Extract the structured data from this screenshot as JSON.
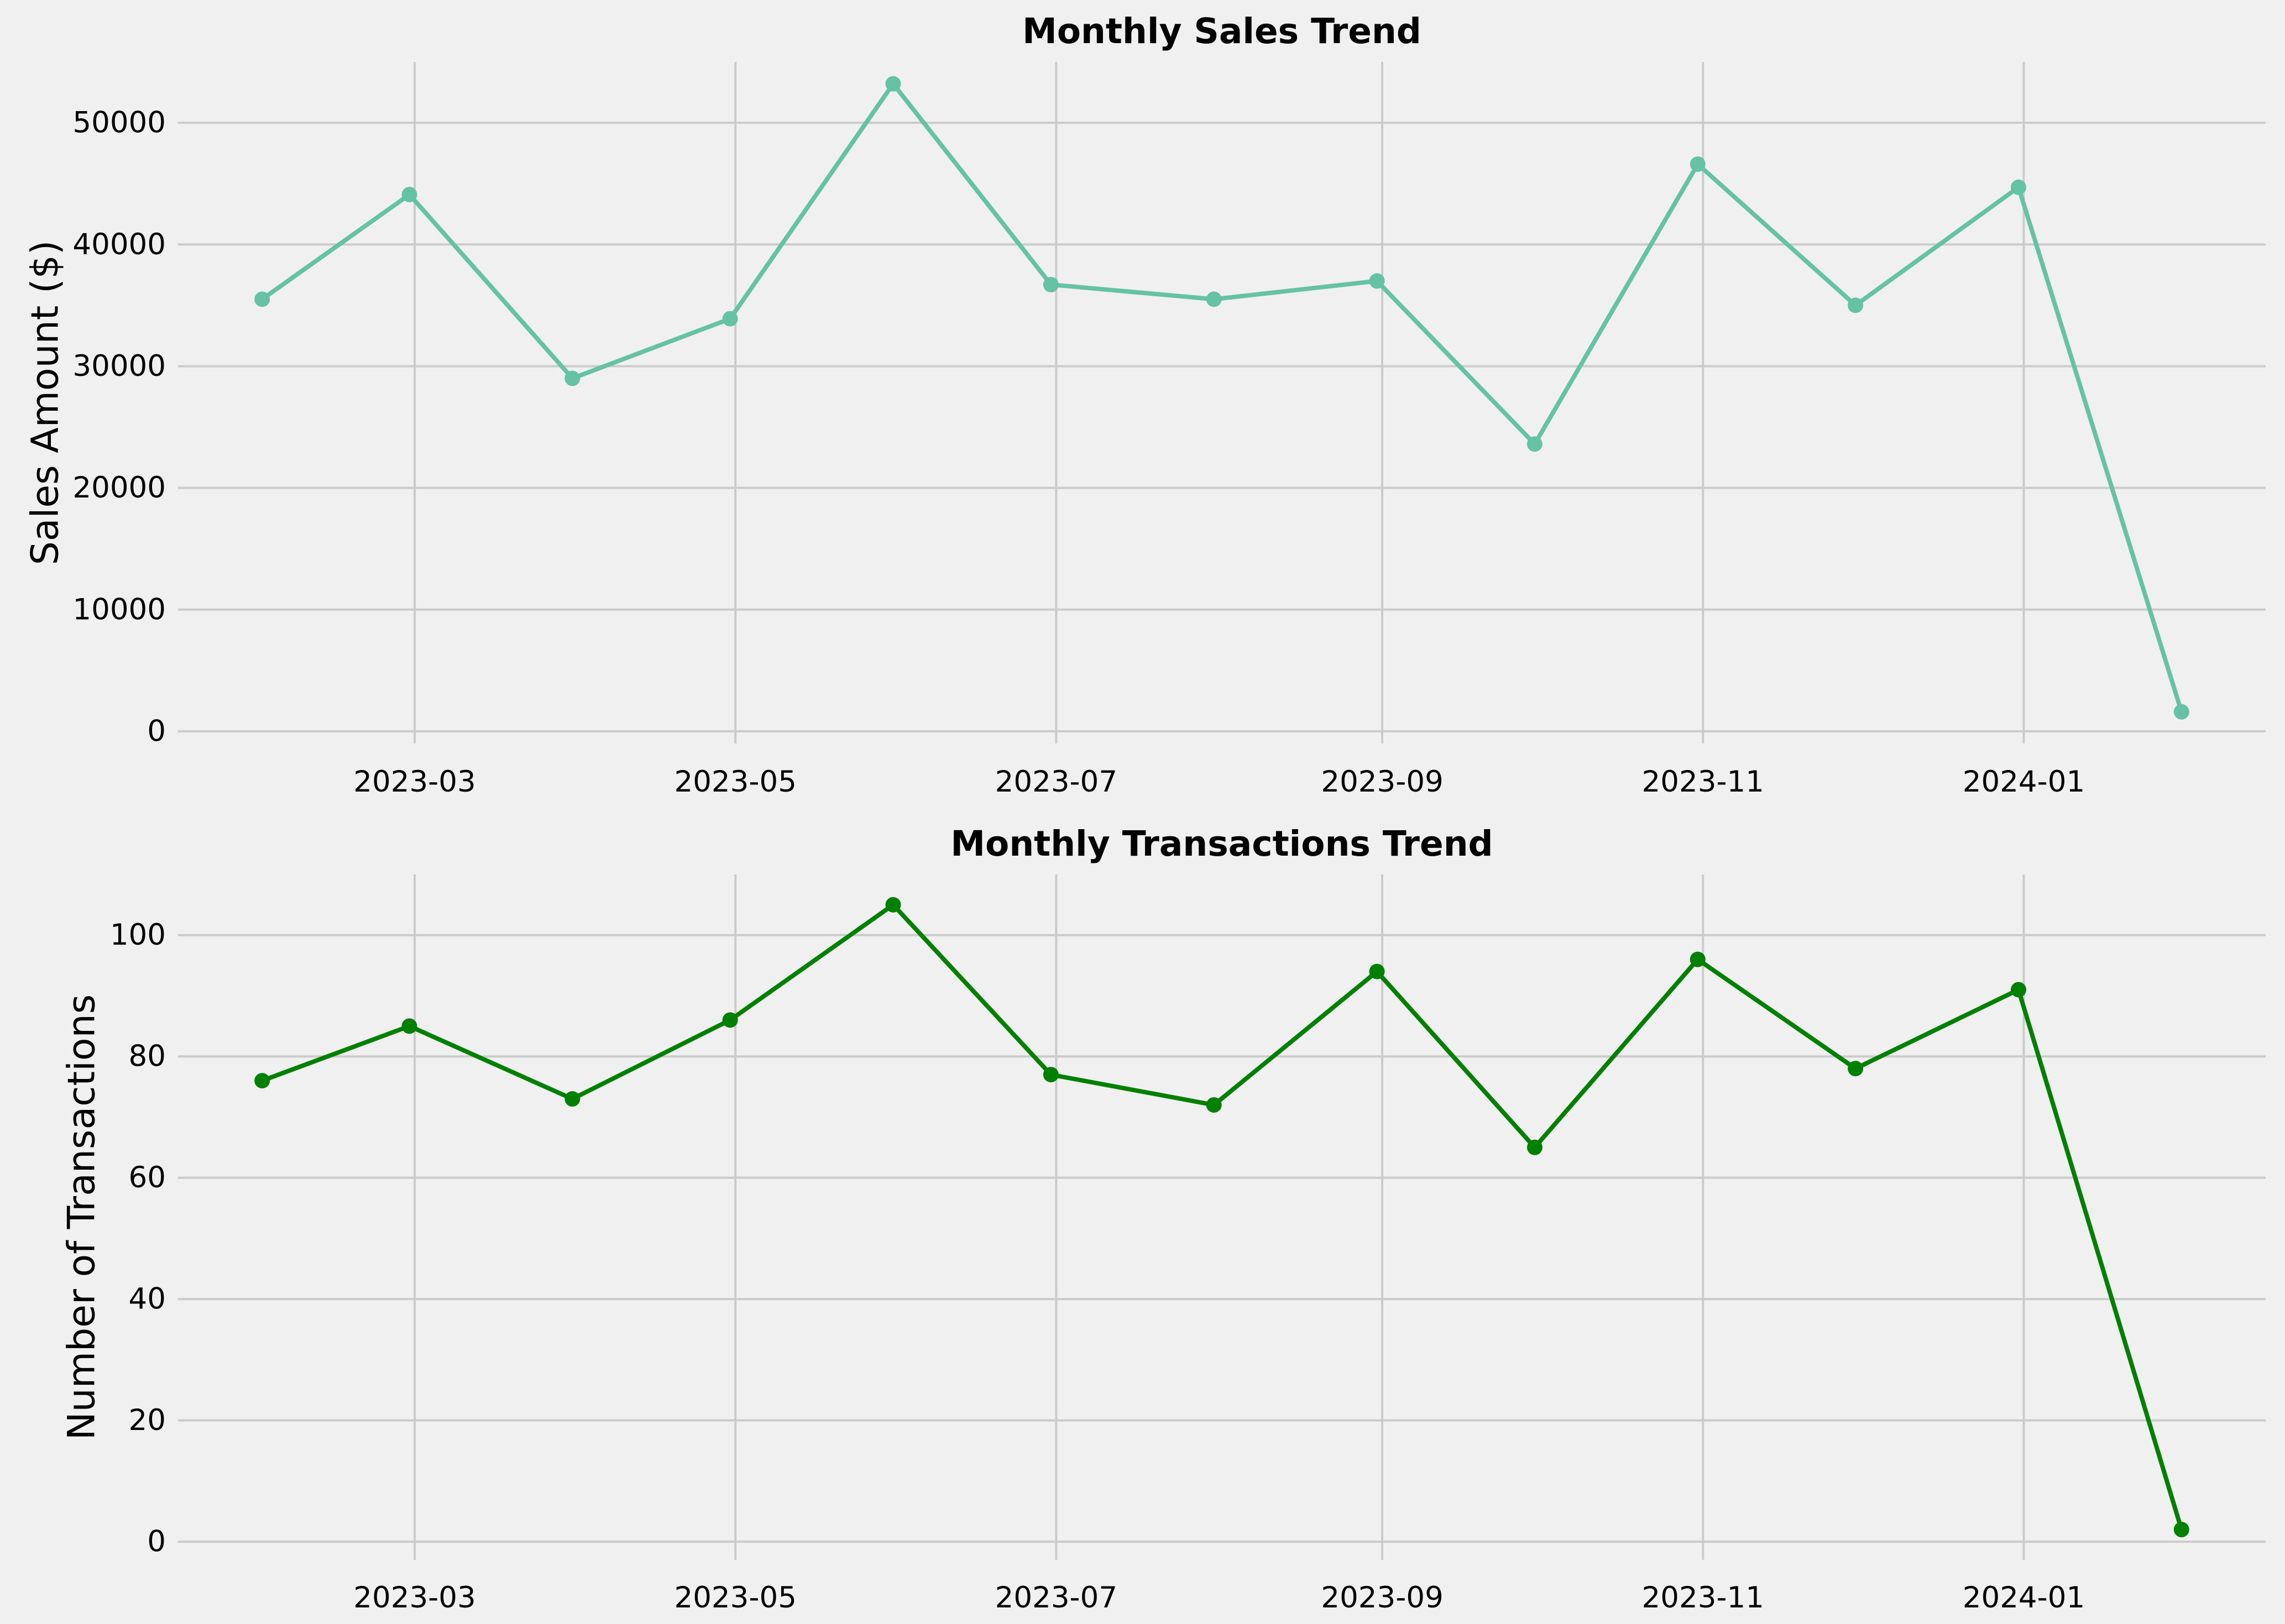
{
  "chart_data": [
    {
      "type": "line",
      "title": "Monthly Sales Trend",
      "xlabel": "",
      "ylabel": "Sales Amount ($)",
      "x": [
        "2023-01-31",
        "2023-02-28",
        "2023-03-31",
        "2023-04-30",
        "2023-05-31",
        "2023-06-30",
        "2023-07-31",
        "2023-08-31",
        "2023-09-30",
        "2023-10-31",
        "2023-11-30",
        "2023-12-31",
        "2024-01-31"
      ],
      "series": [
        {
          "values": [
            35500,
            44100,
            29000,
            33900,
            53200,
            36700,
            35500,
            37000,
            23600,
            46600,
            35000,
            44700,
            1600
          ],
          "color": "#66c2a5",
          "marker": "circle"
        }
      ],
      "x_ticks": [
        "2023-03",
        "2023-05",
        "2023-07",
        "2023-09",
        "2023-11",
        "2024-01"
      ],
      "y_ticks": [
        "0",
        "10000",
        "20000",
        "30000",
        "40000",
        "50000"
      ],
      "ylim": [
        -1000,
        55000
      ],
      "xlim": [
        "2023-01-15",
        "2024-02-16"
      ],
      "grid": true
    },
    {
      "type": "line",
      "title": "Monthly Transactions Trend",
      "xlabel": "",
      "ylabel": "Number of Transactions",
      "x": [
        "2023-01-31",
        "2023-02-28",
        "2023-03-31",
        "2023-04-30",
        "2023-05-31",
        "2023-06-30",
        "2023-07-31",
        "2023-08-31",
        "2023-09-30",
        "2023-10-31",
        "2023-11-30",
        "2023-12-31",
        "2024-01-31"
      ],
      "series": [
        {
          "values": [
            76,
            85,
            73,
            86,
            105,
            77,
            72,
            94,
            65,
            96,
            78,
            91,
            2
          ],
          "color": "#008000",
          "marker": "circle"
        }
      ],
      "x_ticks": [
        "2023-03",
        "2023-05",
        "2023-07",
        "2023-09",
        "2023-11",
        "2024-01"
      ],
      "y_ticks": [
        "0",
        "20",
        "40",
        "60",
        "80",
        "100"
      ],
      "ylim": [
        -3,
        110
      ],
      "xlim": [
        "2023-01-15",
        "2024-02-16"
      ],
      "grid": true
    }
  ]
}
